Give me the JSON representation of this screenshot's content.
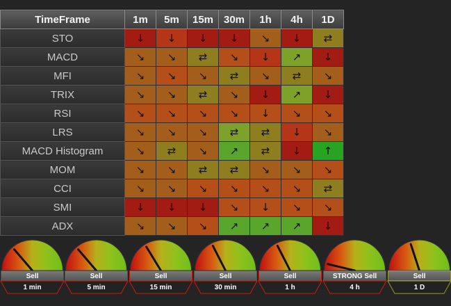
{
  "header": {
    "corner": "TimeFrame",
    "timeframes": [
      "1m",
      "5m",
      "15m",
      "30m",
      "1h",
      "4h",
      "1D"
    ]
  },
  "rows": [
    {
      "name": "STO",
      "cells": [
        [
          "↓",
          "strong-red"
        ],
        [
          "↓",
          "red"
        ],
        [
          "↓",
          "strong-red"
        ],
        [
          "↓",
          "strong-red"
        ],
        [
          "↘",
          "orange"
        ],
        [
          "↓",
          "strong-red"
        ],
        [
          "⇄",
          "olive"
        ]
      ]
    },
    {
      "name": "MACD",
      "cells": [
        [
          "↘",
          "orange"
        ],
        [
          "↘",
          "orange"
        ],
        [
          "⇄",
          "olive"
        ],
        [
          "↘",
          "orange-red"
        ],
        [
          "↓",
          "red"
        ],
        [
          "↗",
          "yellowgreen"
        ],
        [
          "↓",
          "strong-red"
        ]
      ]
    },
    {
      "name": "MFI",
      "cells": [
        [
          "↘",
          "orange"
        ],
        [
          "↘",
          "orange-red"
        ],
        [
          "↘",
          "orange"
        ],
        [
          "⇄",
          "olive"
        ],
        [
          "↘",
          "orange"
        ],
        [
          "⇄",
          "olive"
        ],
        [
          "↘",
          "orange"
        ]
      ]
    },
    {
      "name": "TRIX",
      "cells": [
        [
          "↘",
          "orange"
        ],
        [
          "↘",
          "orange"
        ],
        [
          "⇄",
          "olive"
        ],
        [
          "↘",
          "orange"
        ],
        [
          "↓",
          "strong-red"
        ],
        [
          "↗",
          "yellowgreen"
        ],
        [
          "↓",
          "strong-red"
        ]
      ]
    },
    {
      "name": "RSI",
      "cells": [
        [
          "↘",
          "orange-red"
        ],
        [
          "↘",
          "orange-red"
        ],
        [
          "↘",
          "orange-red"
        ],
        [
          "↘",
          "orange-red"
        ],
        [
          "↓",
          "orange-red"
        ],
        [
          "↘",
          "orange-red"
        ],
        [
          "↘",
          "orange-red"
        ]
      ]
    },
    {
      "name": "LRS",
      "cells": [
        [
          "↘",
          "orange"
        ],
        [
          "↘",
          "orange"
        ],
        [
          "↘",
          "orange"
        ],
        [
          "⇄",
          "yellowgreen"
        ],
        [
          "⇄",
          "olive"
        ],
        [
          "↓",
          "red"
        ],
        [
          "↘",
          "orange"
        ]
      ]
    },
    {
      "name": "MACD Histogram",
      "cells": [
        [
          "↘",
          "orange"
        ],
        [
          "⇄",
          "olive"
        ],
        [
          "↘",
          "orange"
        ],
        [
          "↗",
          "green"
        ],
        [
          "⇄",
          "olive"
        ],
        [
          "↓",
          "strong-red"
        ],
        [
          "↑",
          "bright"
        ]
      ]
    },
    {
      "name": "MOM",
      "cells": [
        [
          "↘",
          "orange"
        ],
        [
          "↘",
          "orange"
        ],
        [
          "⇄",
          "olive"
        ],
        [
          "⇄",
          "olive"
        ],
        [
          "↘",
          "orange"
        ],
        [
          "↘",
          "orange"
        ],
        [
          "↘",
          "orange-red"
        ]
      ]
    },
    {
      "name": "CCI",
      "cells": [
        [
          "↘",
          "orange"
        ],
        [
          "↘",
          "orange"
        ],
        [
          "↘",
          "orange-red"
        ],
        [
          "↘",
          "orange-red"
        ],
        [
          "↘",
          "orange-red"
        ],
        [
          "↘",
          "orange-red"
        ],
        [
          "⇄",
          "olive"
        ]
      ]
    },
    {
      "name": "SMI",
      "cells": [
        [
          "↓",
          "strong-red"
        ],
        [
          "↓",
          "strong-red"
        ],
        [
          "↓",
          "strong-red"
        ],
        [
          "↘",
          "orange-red"
        ],
        [
          "↓",
          "orange-red"
        ],
        [
          "↘",
          "orange-red"
        ],
        [
          "↘",
          "orange-red"
        ]
      ]
    },
    {
      "name": "ADX",
      "cells": [
        [
          "↘",
          "orange"
        ],
        [
          "↘",
          "orange"
        ],
        [
          "↘",
          "orange-red"
        ],
        [
          "↗",
          "green"
        ],
        [
          "↗",
          "green"
        ],
        [
          "↗",
          "green"
        ],
        [
          "↓",
          "strong-red"
        ]
      ]
    }
  ],
  "gauges": [
    {
      "signal": "Sell",
      "timeframe": "1 min",
      "needle": -0.45
    },
    {
      "signal": "Sell",
      "timeframe": "5 min",
      "needle": -0.45
    },
    {
      "signal": "Sell",
      "timeframe": "15 min",
      "needle": -0.35
    },
    {
      "signal": "Sell",
      "timeframe": "30 min",
      "needle": -0.3
    },
    {
      "signal": "Sell",
      "timeframe": "1 h",
      "needle": -0.3
    },
    {
      "signal": "STRONG Sell",
      "timeframe": "4 h",
      "needle": -0.85
    },
    {
      "signal": "Sell",
      "timeframe": "1 D",
      "needle": -0.2
    }
  ],
  "colors": {
    "strong-red": "#a21c14",
    "red": "#b43518",
    "orange-red": "#b44f1a",
    "orange": "#a45e1c",
    "olive": "#8e7e20",
    "yellowgreen": "#7ea12a",
    "green": "#5aa52c",
    "bright": "#28a322",
    "gauge_highlight_red": "#c8200e",
    "gauge_highlight_olive": "#9a9a20"
  }
}
